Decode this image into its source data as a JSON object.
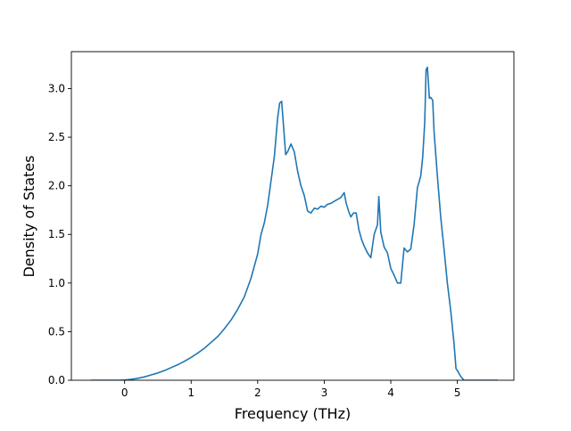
{
  "chart_data": {
    "type": "line",
    "title": "",
    "xlabel": "Frequency (THz)",
    "ylabel": "Density of States",
    "xlim": [
      -0.8,
      5.85
    ],
    "ylim": [
      0.0,
      3.38
    ],
    "xticks": [
      0,
      1,
      2,
      3,
      4,
      5
    ],
    "yticks": [
      0.0,
      0.5,
      1.0,
      1.5,
      2.0,
      2.5,
      3.0
    ],
    "xtick_labels": [
      "0",
      "1",
      "2",
      "3",
      "4",
      "5"
    ],
    "ytick_labels": [
      "0.0",
      "0.5",
      "1.0",
      "1.5",
      "2.0",
      "2.5",
      "3.0"
    ],
    "grid": false,
    "line_color": "#1f77b4",
    "series": [
      {
        "x": [
          -0.5,
          -0.3,
          -0.1,
          0.0,
          0.1,
          0.2,
          0.3,
          0.4,
          0.5,
          0.6,
          0.7,
          0.8,
          0.9,
          1.0,
          1.1,
          1.2,
          1.3,
          1.4,
          1.5,
          1.6,
          1.7,
          1.8,
          1.9,
          2.0,
          2.05,
          2.1,
          2.15,
          2.2,
          2.25,
          2.3,
          2.33,
          2.36,
          2.39,
          2.42,
          2.45,
          2.5,
          2.55,
          2.6,
          2.65,
          2.7,
          2.75,
          2.8,
          2.85,
          2.9,
          2.95,
          3.0,
          3.05,
          3.1,
          3.15,
          3.2,
          3.25,
          3.3,
          3.33,
          3.37,
          3.4,
          3.44,
          3.48,
          3.52,
          3.56,
          3.6,
          3.65,
          3.7,
          3.75,
          3.8,
          3.82,
          3.85,
          3.9,
          3.95,
          4.0,
          4.05,
          4.1,
          4.15,
          4.2,
          4.25,
          4.3,
          4.35,
          4.4,
          4.45,
          4.48,
          4.51,
          4.53,
          4.55,
          4.58,
          4.6,
          4.63,
          4.65,
          4.7,
          4.75,
          4.8,
          4.85,
          4.9,
          4.95,
          4.98,
          5.0,
          5.05,
          5.1,
          5.3,
          5.6
        ],
        "y": [
          0.0,
          0.0,
          0.0,
          0.002,
          0.01,
          0.02,
          0.035,
          0.055,
          0.075,
          0.1,
          0.13,
          0.16,
          0.195,
          0.235,
          0.28,
          0.33,
          0.39,
          0.45,
          0.53,
          0.62,
          0.73,
          0.86,
          1.05,
          1.3,
          1.5,
          1.62,
          1.8,
          2.05,
          2.3,
          2.7,
          2.85,
          2.87,
          2.6,
          2.32,
          2.35,
          2.43,
          2.35,
          2.15,
          2.0,
          1.9,
          1.74,
          1.72,
          1.77,
          1.76,
          1.79,
          1.78,
          1.81,
          1.82,
          1.84,
          1.86,
          1.88,
          1.93,
          1.82,
          1.73,
          1.68,
          1.72,
          1.72,
          1.55,
          1.45,
          1.38,
          1.31,
          1.26,
          1.5,
          1.6,
          1.89,
          1.52,
          1.37,
          1.31,
          1.15,
          1.08,
          1.0,
          1.0,
          1.36,
          1.32,
          1.35,
          1.6,
          1.98,
          2.1,
          2.3,
          2.65,
          3.19,
          3.22,
          2.9,
          2.91,
          2.88,
          2.56,
          2.1,
          1.68,
          1.35,
          1.0,
          0.72,
          0.38,
          0.12,
          0.1,
          0.04,
          0.0,
          0.0,
          0.0
        ]
      }
    ]
  }
}
